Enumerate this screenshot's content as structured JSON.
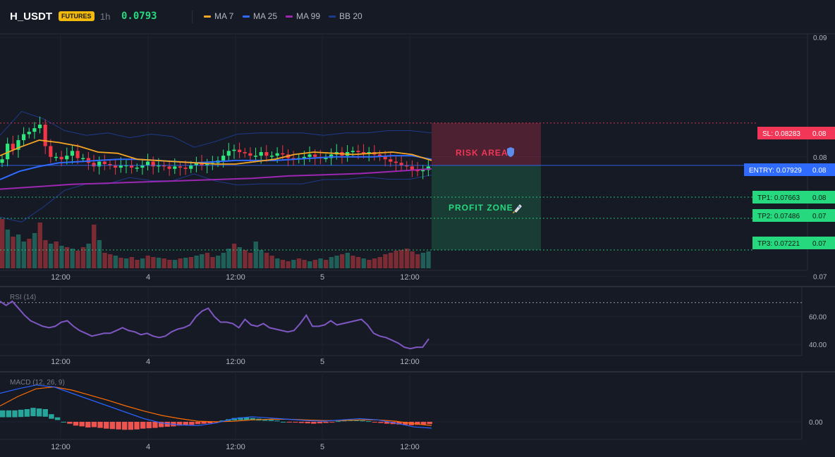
{
  "header": {
    "symbol": "H_USDT",
    "badge": "FUTURES",
    "timeframe": "1h",
    "price": "0.0793",
    "legend": [
      {
        "name": "MA 7",
        "color": "#f5a623"
      },
      {
        "name": "MA 25",
        "color": "#2f6bff"
      },
      {
        "name": "MA 99",
        "color": "#9c27b0"
      },
      {
        "name": "BB 20",
        "color": "#1e3a8a"
      }
    ]
  },
  "levels": {
    "sl": "SL: 0.08283",
    "sl_axis": "0.08",
    "entry": "ENTRY: 0.07929",
    "entry_axis": "0.08",
    "tp1": "TP1: 0.07663",
    "tp1_axis": "0.08",
    "tp2": "TP2: 0.07486",
    "tp2_axis": "0.07",
    "tp3": "TP3: 0.07221",
    "tp3_axis": "0.07",
    "risk_label": "RISK AREA",
    "profit_label": "PROFIT ZONE"
  },
  "colors": {
    "up": "#26a69a",
    "up_bright": "#2ee77a",
    "down": "#f23645",
    "sl": "#f23657",
    "entry": "#2f6bff",
    "tp": "#26d97f",
    "rsi": "#7e57c2",
    "macd": "#2962ff",
    "signal": "#ff6d00"
  },
  "chart_data": [
    {
      "type": "candlestick",
      "title": "H_USDT",
      "x_tick_labels": [
        "12:00",
        "4",
        "12:00",
        "5",
        "12:00"
      ],
      "y_tick_labels": [
        "0.09",
        "0.08",
        "0.07"
      ],
      "ylim": [
        0.0705,
        0.0903
      ],
      "close": [
        0.0798,
        0.0811,
        0.0806,
        0.0814,
        0.0819,
        0.0821,
        0.0824,
        0.0827,
        0.0809,
        0.08,
        0.08,
        0.0798,
        0.0801,
        0.0805,
        0.0799,
        0.0799,
        0.0795,
        0.0792,
        0.0796,
        0.0794,
        0.0793,
        0.0791,
        0.0793,
        0.0793,
        0.0791,
        0.0791,
        0.0793,
        0.0796,
        0.0792,
        0.0793,
        0.0792,
        0.079,
        0.0792,
        0.0791,
        0.079,
        0.0793,
        0.0795,
        0.0793,
        0.0794,
        0.0795,
        0.0797,
        0.0801,
        0.0805,
        0.0806,
        0.0804,
        0.0803,
        0.0801,
        0.0801,
        0.0804,
        0.0801,
        0.0801,
        0.0803,
        0.0802,
        0.0799,
        0.0798,
        0.0799,
        0.08,
        0.0802,
        0.08,
        0.0799,
        0.0799,
        0.0802,
        0.0804,
        0.0801,
        0.0804,
        0.0805,
        0.0804,
        0.0803,
        0.0804,
        0.0802,
        0.08,
        0.0798,
        0.0796,
        0.0795,
        0.0793,
        0.0792,
        0.0789,
        0.0788,
        0.0789,
        0.0792
      ],
      "series": [
        {
          "name": "MA 7",
          "values": [
            0.0801,
            0.0808,
            0.0814,
            0.0812,
            0.0809,
            0.0804,
            0.0803,
            0.0798,
            0.0797,
            0.0796,
            0.0795,
            0.0794,
            0.0794,
            0.0796,
            0.0798,
            0.0802,
            0.0804,
            0.0803,
            0.0802,
            0.0803,
            0.0804,
            0.0802,
            0.0797
          ]
        },
        {
          "name": "MA 25",
          "values": [
            0.0781,
            0.0788,
            0.0792,
            0.0795,
            0.0796,
            0.0797,
            0.0798,
            0.0798,
            0.0797,
            0.0796,
            0.0795,
            0.0796,
            0.0797,
            0.0797,
            0.0797,
            0.0798,
            0.0799,
            0.08,
            0.08,
            0.08,
            0.0801,
            0.0801,
            0.0798
          ]
        },
        {
          "name": "MA 99",
          "values": [
            0.0773,
            0.0775,
            0.0777,
            0.0778,
            0.0779,
            0.078,
            0.0781,
            0.0782,
            0.0784,
            0.0785,
            0.0786,
            0.0788,
            0.079
          ]
        },
        {
          "name": "BB 20",
          "values": [
            0.0818,
            0.0838,
            0.0832,
            0.0822,
            0.0818,
            0.082,
            0.0816,
            0.0819,
            0.0817,
            0.0808,
            0.0813,
            0.0819,
            0.082,
            0.082,
            0.082,
            0.0818,
            0.082,
            0.082,
            0.0822,
            0.0822,
            0.082
          ]
        }
      ]
    },
    {
      "type": "line",
      "title": "RSI (14)",
      "y_tick_labels": [
        "60.00",
        "40.00"
      ],
      "ylim": [
        33,
        80
      ],
      "series": [
        {
          "name": "RSI (14)",
          "values": [
            71,
            68,
            71,
            66,
            61,
            57,
            55,
            53,
            52,
            53,
            56,
            57,
            53,
            50,
            48,
            46,
            47,
            48,
            48,
            50,
            52,
            50,
            49,
            47,
            48,
            46,
            45,
            46,
            49,
            51,
            52,
            54,
            60,
            64,
            66,
            60,
            56,
            56,
            55,
            52,
            58,
            54,
            53,
            55,
            52,
            51,
            50,
            49,
            50,
            55,
            61,
            53,
            53,
            54,
            57,
            54,
            55,
            56,
            57,
            58,
            54,
            48,
            46,
            45,
            43,
            41,
            38,
            37,
            38,
            38,
            44
          ]
        }
      ],
      "reference_line": 70
    },
    {
      "type": "bar",
      "title": "MACD (12, 26, 9)",
      "y_tick_labels": [
        "0.00"
      ],
      "histogram": [
        0.18,
        0.18,
        0.18,
        0.19,
        0.2,
        0.22,
        0.21,
        0.2,
        0.12,
        0.07,
        0.0,
        -0.05,
        -0.1,
        -0.12,
        -0.15,
        -0.14,
        -0.16,
        -0.18,
        -0.19,
        -0.2,
        -0.21,
        -0.21,
        -0.2,
        -0.18,
        -0.17,
        -0.16,
        -0.14,
        -0.13,
        -0.12,
        -0.1,
        -0.09,
        -0.08,
        -0.06,
        -0.05,
        -0.04,
        -0.02,
        0.02,
        0.04,
        0.06,
        0.07,
        0.07,
        0.06,
        0.05,
        0.04,
        0.03,
        0.02,
        0.0,
        -0.01,
        -0.02,
        -0.03,
        -0.04,
        -0.05,
        -0.04,
        -0.03,
        -0.02,
        0.01,
        0.02,
        0.03,
        0.03,
        0.02,
        0.01,
        -0.02,
        -0.03,
        -0.05,
        -0.06,
        -0.07,
        -0.08,
        -0.09,
        -0.08,
        -0.07,
        -0.06
      ],
      "series": [
        {
          "name": "MACD",
          "values": [
            0.45,
            0.52,
            0.58,
            0.55,
            0.45,
            0.35,
            0.25,
            0.15,
            0.05,
            -0.02,
            -0.05,
            -0.06,
            -0.02,
            0.05,
            0.08,
            0.06,
            0.04,
            0.02,
            0.01,
            0.03,
            0.05,
            0.03,
            -0.02,
            -0.08,
            -0.1
          ]
        },
        {
          "name": "Signal",
          "values": [
            0.25,
            0.4,
            0.52,
            0.55,
            0.5,
            0.42,
            0.34,
            0.25,
            0.17,
            0.1,
            0.05,
            0.01,
            0.0,
            0.01,
            0.03,
            0.04,
            0.04,
            0.03,
            0.02,
            0.02,
            0.03,
            0.03,
            0.01,
            -0.03,
            -0.06
          ]
        }
      ]
    }
  ]
}
